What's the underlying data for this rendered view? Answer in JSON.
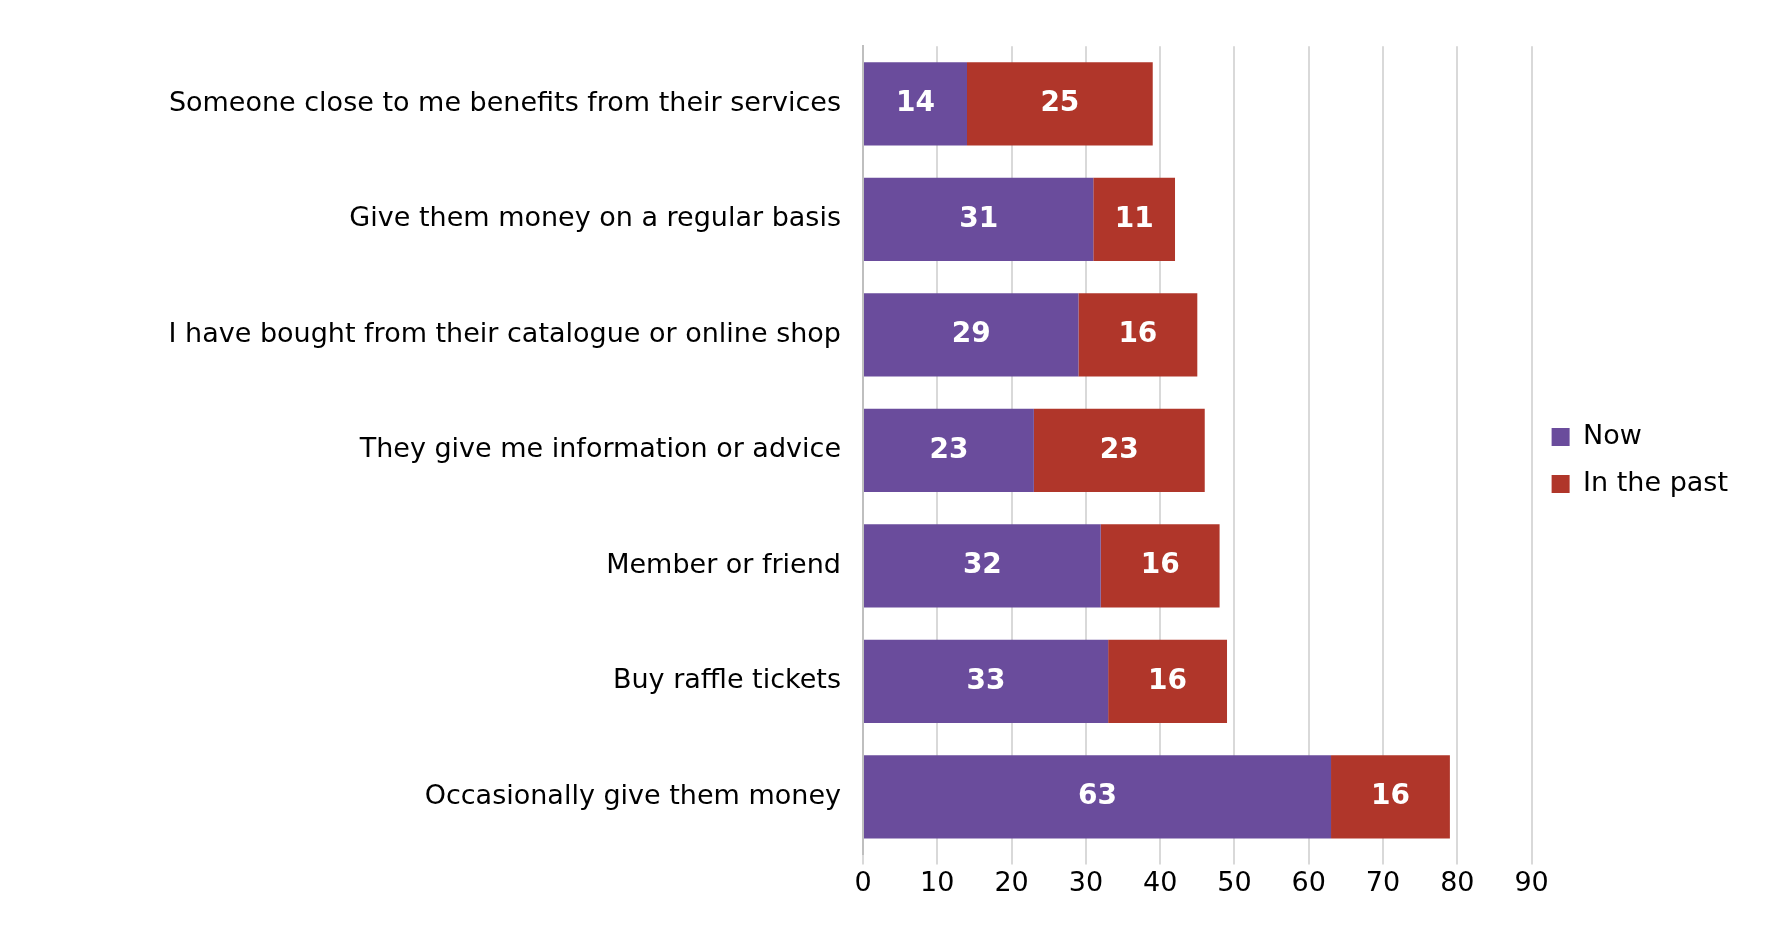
{
  "chart_data": {
    "type": "bar",
    "orientation": "horizontal",
    "stacked": true,
    "categories": [
      "Someone close to me benefits from their services",
      "Give them money on a regular basis",
      "I have bought from their catalogue or online shop",
      "They give me information or advice",
      "Member or friend",
      "Buy raffle tickets",
      "Occasionally give them money"
    ],
    "series": [
      {
        "name": "Now",
        "color": "#6a4c9c",
        "values": [
          14,
          31,
          29,
          23,
          32,
          33,
          63
        ]
      },
      {
        "name": "In the past",
        "color": "#b0362a",
        "values": [
          25,
          11,
          16,
          23,
          16,
          16,
          16
        ]
      }
    ],
    "xlim": [
      0,
      90
    ],
    "xticks": [
      0,
      10,
      20,
      30,
      40,
      50,
      60,
      70,
      80,
      90
    ],
    "grid": "x",
    "legend": "right",
    "data_labels": true
  }
}
